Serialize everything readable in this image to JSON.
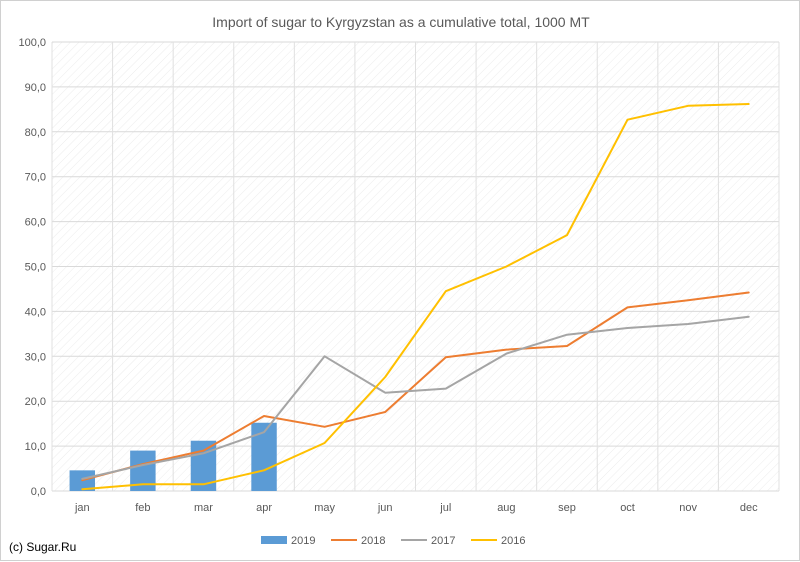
{
  "chart_data": {
    "type": "bar+line",
    "title": "Import of sugar to Kyrgyzstan as a cumulative total, 1000 MT",
    "categories": [
      "jan",
      "feb",
      "mar",
      "apr",
      "may",
      "jun",
      "jul",
      "aug",
      "sep",
      "oct",
      "nov",
      "dec"
    ],
    "y_ticks": [
      "0,0",
      "10,0",
      "20,0",
      "30,0",
      "40,0",
      "50,0",
      "60,0",
      "70,0",
      "80,0",
      "90,0",
      "100,0"
    ],
    "ylim": [
      0,
      100
    ],
    "grid": true,
    "legend_position": "bottom",
    "bar_series": {
      "name": "2019",
      "color": "#5b9bd5",
      "values": [
        4.6,
        9.0,
        11.2,
        15.2
      ]
    },
    "line_series": [
      {
        "name": "2018",
        "color": "#ed7d31",
        "values": [
          2.4,
          6.0,
          9.0,
          16.7,
          14.3,
          17.6,
          29.8,
          31.5,
          32.3,
          40.9,
          42.5,
          44.2
        ]
      },
      {
        "name": "2017",
        "color": "#a5a5a5",
        "values": [
          2.7,
          5.8,
          8.4,
          13.1,
          30.0,
          21.9,
          22.8,
          30.6,
          34.8,
          36.3,
          37.2,
          38.8
        ]
      },
      {
        "name": "2016",
        "color": "#ffc000",
        "values": [
          0.4,
          1.5,
          1.5,
          4.6,
          10.7,
          25.4,
          44.5,
          50.0,
          57.0,
          82.7,
          85.8,
          86.2
        ]
      }
    ]
  },
  "legend": {
    "items": [
      {
        "label": "2019",
        "color": "#5b9bd5",
        "kind": "bar"
      },
      {
        "label": "2018",
        "color": "#ed7d31",
        "kind": "line"
      },
      {
        "label": "2017",
        "color": "#a5a5a5",
        "kind": "line"
      },
      {
        "label": "2016",
        "color": "#ffc000",
        "kind": "line"
      }
    ]
  },
  "footer": {
    "copyright": "(c) Sugar.Ru"
  }
}
